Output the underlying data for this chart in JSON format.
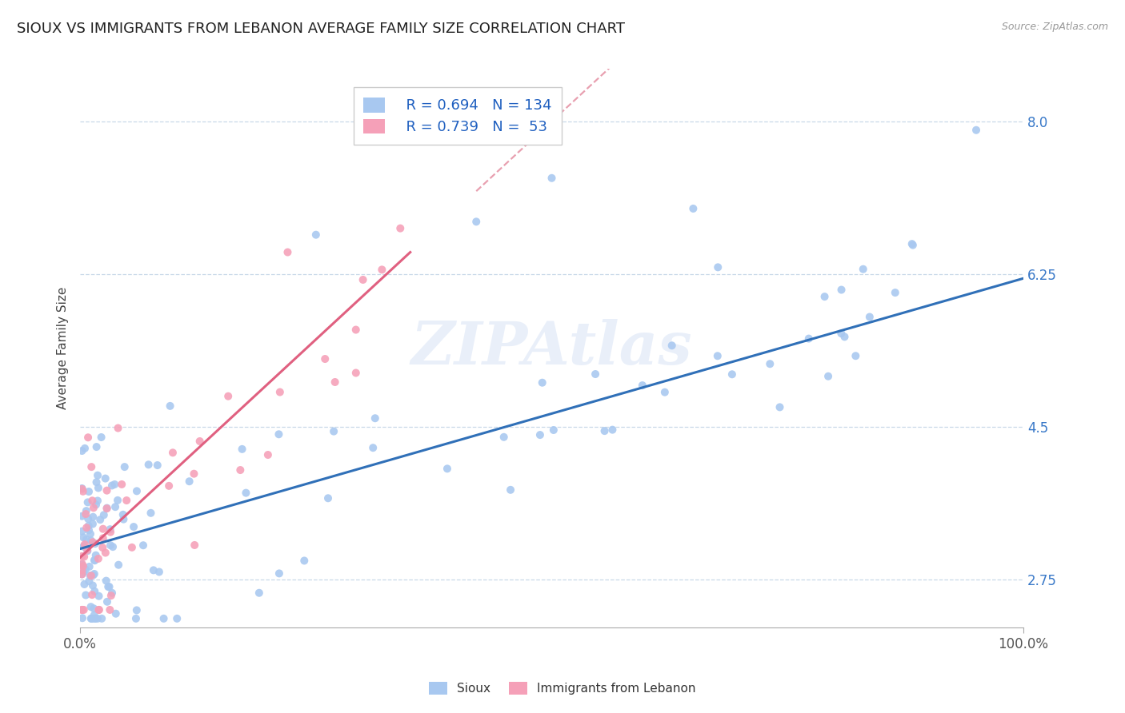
{
  "title": "SIOUX VS IMMIGRANTS FROM LEBANON AVERAGE FAMILY SIZE CORRELATION CHART",
  "source": "Source: ZipAtlas.com",
  "ylabel": "Average Family Size",
  "xlim": [
    0.0,
    100.0
  ],
  "ylim": [
    2.2,
    8.6
  ],
  "yticks": [
    2.75,
    4.5,
    6.25,
    8.0
  ],
  "xticks": [
    0.0,
    100.0
  ],
  "xticklabels": [
    "0.0%",
    "100.0%"
  ],
  "sioux_color": "#a8c8f0",
  "lebanon_color": "#f5a0b8",
  "background_color": "#ffffff",
  "grid_color": "#c8d8e8",
  "watermark": "ZIPAtlas",
  "watermark_color": "#b8ccee",
  "trend_line_color_sioux": "#3070b8",
  "trend_line_color_dashed": "#e8a0b0",
  "trend_line_color_lebanon": "#e06080",
  "title_fontsize": 13,
  "axis_label_fontsize": 11,
  "tick_label_fontsize": 12,
  "legend_fontsize": 13,
  "ytick_color": "#3878c8",
  "sioux_R": 0.694,
  "sioux_N": 134,
  "lebanon_R": 0.739,
  "lebanon_N": 53,
  "sioux_trend_start_y": 3.1,
  "sioux_trend_end_y": 6.2,
  "lebanon_trend_x_end": 35.0,
  "lebanon_trend_start_y": 3.0,
  "lebanon_trend_end_y": 6.5
}
